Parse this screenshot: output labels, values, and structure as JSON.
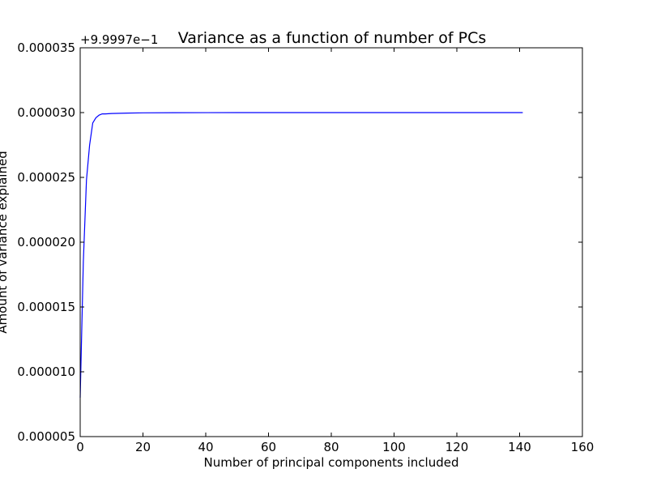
{
  "chart_data": {
    "type": "line",
    "title": "Variance as a function of number of PCs",
    "xlabel": "Number of principal components included",
    "ylabel": "Amount of variance explained",
    "offset_label": "+9.9997e−1",
    "xlim": [
      0,
      160
    ],
    "ylim": [
      5e-06,
      3.5e-05
    ],
    "x_ticks": [
      0,
      20,
      40,
      60,
      80,
      100,
      120,
      140,
      160
    ],
    "x_tick_labels": [
      "0",
      "20",
      "40",
      "60",
      "80",
      "100",
      "120",
      "140",
      "160"
    ],
    "y_ticks": [
      5e-06,
      1e-05,
      1.5e-05,
      2e-05,
      2.5e-05,
      3e-05,
      3.5e-05
    ],
    "y_tick_labels": [
      "0.000005",
      "0.000010",
      "0.000015",
      "0.000020",
      "0.000025",
      "0.000030",
      "0.000035"
    ],
    "grid": false,
    "series": [
      {
        "color": "#0000ff",
        "x": [
          0,
          1,
          2,
          3,
          4,
          5,
          6,
          7,
          8,
          10,
          15,
          20,
          30,
          50,
          80,
          110,
          141
        ],
        "y": [
          8e-06,
          1.85e-05,
          2.48e-05,
          2.75e-05,
          2.92e-05,
          2.96e-05,
          2.98e-05,
          2.99e-05,
          2.99e-05,
          2.993e-05,
          2.996e-05,
          2.998e-05,
          2.999e-05,
          3e-05,
          3e-05,
          3e-05,
          3e-05
        ]
      }
    ]
  }
}
